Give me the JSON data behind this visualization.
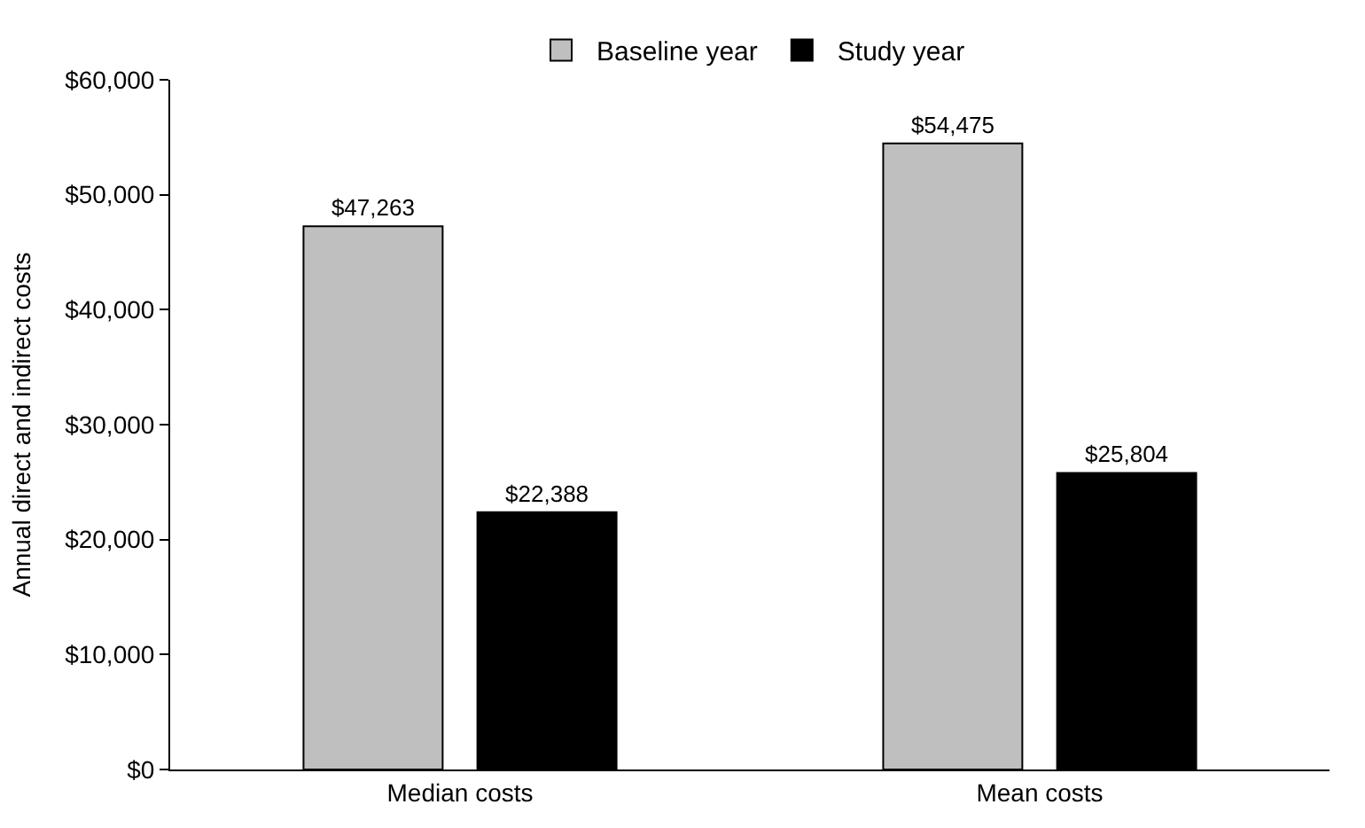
{
  "chart_data": {
    "type": "bar",
    "ylabel": "Annual direct and indirect costs",
    "categories": [
      "Median costs",
      "Mean costs"
    ],
    "series": [
      {
        "name": "Baseline year",
        "color": "#bfbfbf",
        "values": [
          47263,
          54475
        ],
        "value_labels": [
          "$47,263",
          "$54,475"
        ]
      },
      {
        "name": "Study year",
        "color": "#000000",
        "values": [
          22388,
          25804
        ],
        "value_labels": [
          "$22,388",
          "$25,804"
        ]
      }
    ],
    "ylim": [
      0,
      60000
    ],
    "yticks": [
      {
        "value": 0,
        "label": "$0"
      },
      {
        "value": 10000,
        "label": "$10,000"
      },
      {
        "value": 20000,
        "label": "$20,000"
      },
      {
        "value": 30000,
        "label": "$30,000"
      },
      {
        "value": 40000,
        "label": "$40,000"
      },
      {
        "value": 50000,
        "label": "$50,000"
      },
      {
        "value": 60000,
        "label": "$60,000"
      }
    ],
    "legend": "top"
  }
}
